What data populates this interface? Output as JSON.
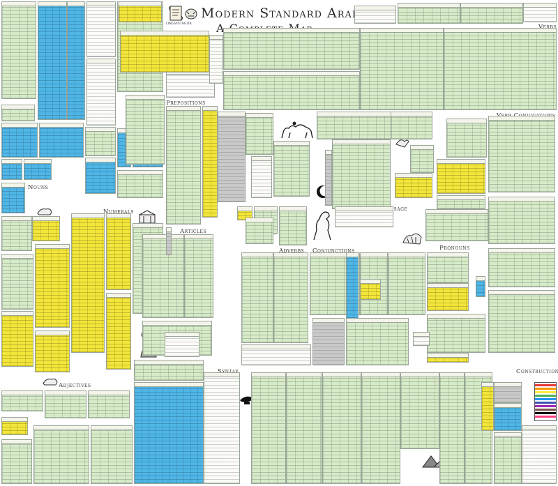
{
  "poster": {
    "title": "Modern Standard Arabic",
    "subtitle": "A Complete Map",
    "brand": "LINGVISTAGOR"
  },
  "sections": {
    "nouns": "Nouns",
    "numerals": "Numerals",
    "articles": "Articles",
    "prepositions": "Prepositions",
    "adjectives": "Adjectives",
    "syntax": "Syntax",
    "adverbs": "Adverbs",
    "conjunctions": "Conjunctions",
    "verbs": "Verbs",
    "verb_conjugations": "Verb Conjugations",
    "verbal_usage": "Verbal Usage",
    "pronouns": "Pronouns",
    "constructions": "Constructions"
  },
  "illustrations": {
    "scroll": "scroll-icon",
    "crescent": "crescent-star-icon",
    "camel": "camel-rider-icon",
    "horse": "rearing-horse-icon",
    "scholar": "scholar-portrait-icon",
    "lamp": "oil-lamp-icon",
    "pyramids": "pyramids-icon",
    "tiger": "tiger-icon"
  },
  "colors": {
    "green": "#d8ebc8",
    "blue": "#4fb6e6",
    "yellow": "#f3e63a",
    "gray": "#c9c9c9",
    "white": "#fbfbf8",
    "title": "#2a2a2a"
  },
  "construction_palette": [
    "#e53935",
    "#ff9800",
    "#ffeb3b",
    "#4caf50",
    "#2196f3",
    "#3f51b5",
    "#9c27b0",
    "#795548",
    "#000000",
    "#ff4081"
  ]
}
